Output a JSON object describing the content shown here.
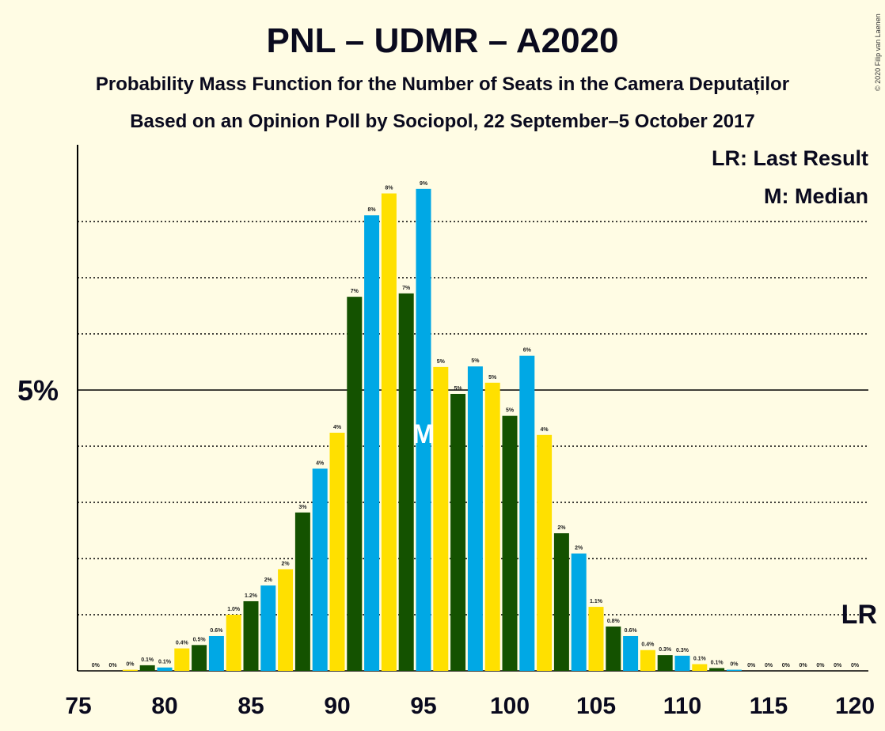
{
  "chart_data": {
    "type": "bar",
    "title": "PNL – UDMR – A2020",
    "subtitle": "Probability Mass Function for the Number of Seats in the Camera Deputaților",
    "subtitle2": "Based on an Opinion Poll by Sociopol, 22 September–5 October 2017",
    "copyright": "© 2020 Filip van Laenen",
    "legend": {
      "lr": "LR: Last Result",
      "m": "M: Median"
    },
    "ytick_label": "5%",
    "yticks": [
      5
    ],
    "ylim": [
      0,
      9.3
    ],
    "x": [
      76,
      77,
      78,
      79,
      80,
      81,
      82,
      83,
      84,
      85,
      86,
      87,
      88,
      89,
      90,
      91,
      92,
      93,
      94,
      95,
      96,
      97,
      98,
      99,
      100,
      101,
      102,
      103,
      104,
      105,
      106,
      107,
      108,
      109,
      110,
      111,
      112,
      113,
      114,
      115,
      116,
      117,
      118,
      119,
      120
    ],
    "values": [
      0,
      0,
      0.02,
      0.1,
      0.06,
      0.4,
      0.46,
      0.62,
      1.0,
      1.24,
      1.52,
      1.81,
      2.82,
      3.6,
      4.24,
      6.66,
      8.11,
      8.5,
      6.72,
      8.58,
      5.41,
      4.93,
      5.42,
      5.13,
      4.54,
      5.61,
      4.2,
      2.45,
      2.09,
      1.14,
      0.79,
      0.62,
      0.37,
      0.28,
      0.27,
      0.12,
      0.05,
      0.02,
      0,
      0,
      0,
      0,
      0,
      0,
      0
    ],
    "labels": [
      "0%",
      "0%",
      "0%",
      "0.1%",
      "0.1%",
      "0.4%",
      "0.5%",
      "0.6%",
      "1.0%",
      "1.2%",
      "2%",
      "2%",
      "3%",
      "4%",
      "4%",
      "7%",
      "8%",
      "8%",
      "7%",
      "9%",
      "5%",
      "5%",
      "5%",
      "5%",
      "5%",
      "6%",
      "4%",
      "2%",
      "2%",
      "1.1%",
      "0.8%",
      "0.6%",
      "0.4%",
      "0.3%",
      "0.3%",
      "0.1%",
      "0.1%",
      "0%",
      "0%",
      "0%",
      "0%",
      "0%",
      "0%",
      "0%",
      "0%"
    ],
    "xtick_labels": [
      75,
      80,
      85,
      90,
      95,
      100,
      105,
      110,
      115,
      120
    ],
    "median": 95,
    "median_label": "M",
    "last_result": 120,
    "last_result_label": "LR",
    "colors": {
      "dark_green": "#145200",
      "blue": "#00A8E5",
      "yellow": "#FFE000"
    }
  }
}
